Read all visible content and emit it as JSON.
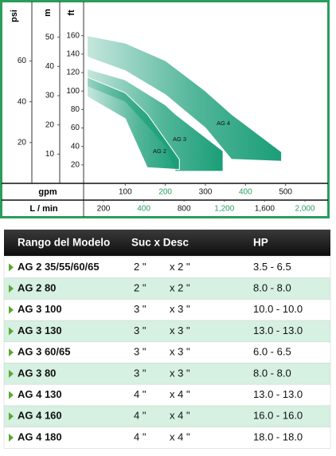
{
  "chart_data": {
    "type": "area",
    "ylabel": "ft",
    "ylim": [
      0,
      190
    ],
    "yticks": [
      20,
      40,
      60,
      80,
      100,
      120,
      140,
      160
    ],
    "y2label": "m",
    "y2lim": [
      0,
      60
    ],
    "y2ticks": [
      10,
      20,
      30,
      40,
      50
    ],
    "y3label": "psi",
    "y3lim": [
      0,
      86
    ],
    "y3ticks": [
      20,
      40,
      60
    ],
    "xlabel": "gpm",
    "xlim": [
      0,
      600
    ],
    "xticks": [
      100,
      200,
      300,
      400,
      500
    ],
    "xtick_colors": [
      "#111111",
      "#2a9d5c",
      "#111111",
      "#2a9d5c",
      "#111111"
    ],
    "x2label": "L / min",
    "x2ticks": [
      200,
      400,
      800,
      {
        "value": 1200,
        "label": "1,200"
      },
      {
        "value": 1600,
        "label": "1,600"
      },
      {
        "value": 2000,
        "label": "2,000"
      }
    ],
    "x2tick_colors": [
      "#111111",
      "#2a9d5c",
      "#111111",
      "#2a9d5c",
      "#111111",
      "#2a9d5c"
    ],
    "series": [
      {
        "name": "AG 4",
        "color": "#1a9e78",
        "x": [
          5,
          100,
          200,
          300,
          365,
          490
        ],
        "upper": [
          160,
          152,
          133,
          100,
          75,
          34
        ],
        "lower": [
          137,
          122,
          96,
          60,
          26,
          24
        ]
      },
      {
        "name": "AG 3",
        "color": "#1a9e78",
        "x": [
          5,
          100,
          200,
          225,
          344
        ],
        "upper": [
          124,
          112,
          85,
          75,
          35
        ],
        "lower": [
          105,
          88,
          40,
          13,
          13
        ]
      },
      {
        "name": "AG 2",
        "color": "#1a9e78",
        "x": [
          5,
          100,
          155,
          235
        ],
        "upper": [
          115,
          98,
          75,
          26
        ],
        "lower": [
          94,
          70,
          17,
          15
        ]
      }
    ]
  },
  "table": {
    "header": [
      "Rango del Modelo",
      "Suc x Desc",
      "HP"
    ],
    "rows": [
      [
        "AG 2 35/55/60/65",
        "2 \"",
        "x 2 \"",
        "3.5 - 6.5"
      ],
      [
        "AG 2 80",
        "2 \"",
        "x 2 \"",
        "8.0 - 8.0"
      ],
      [
        "AG 3 100",
        "3 \"",
        "x 3 \"",
        "10.0 - 10.0"
      ],
      [
        "AG 3 130",
        "3 \"",
        "x 3 \"",
        "13.0 - 13.0"
      ],
      [
        "AG 3 60/65",
        "3 \"",
        "x 3 \"",
        "6.0 - 6.5"
      ],
      [
        "AG 3 80",
        "3 \"",
        "x 3 \"",
        "8.0 - 8.0"
      ],
      [
        "AG 4 130",
        "4 \"",
        "x 4 \"",
        "13.0 - 13.0"
      ],
      [
        "AG 4 160",
        "4 \"",
        "x 4 \"",
        "16.0 - 16.0"
      ],
      [
        "AG 4 180",
        "4 \"",
        "x 4 \"",
        "18.0 - 18.0"
      ]
    ]
  }
}
